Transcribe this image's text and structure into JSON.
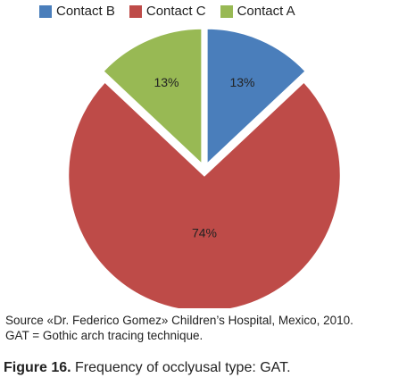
{
  "chart_data": {
    "type": "pie",
    "title": "",
    "slices": [
      {
        "label": "Contact B",
        "value": 13,
        "display": "13%",
        "color": "#4A7EBB"
      },
      {
        "label": "Contact C",
        "value": 74,
        "display": "74%",
        "color": "#BE4B48"
      },
      {
        "label": "Contact A",
        "value": 13,
        "display": "13%",
        "color": "#98B954"
      }
    ],
    "legend_placement": "top"
  },
  "legend": [
    {
      "label": "Contact B",
      "color": "#4A7EBB"
    },
    {
      "label": "Contact C",
      "color": "#BE4B48"
    },
    {
      "label": "Contact A",
      "color": "#98B954"
    }
  ],
  "captions": {
    "source": "Source «Dr. Federico Gomez» Children’s Hospital, Mexico, 2010.",
    "gat": "GAT = Gothic arch tracing technique.",
    "figure_label": "Figure 16.",
    "figure_text": " Frequency of occlyusal type: GAT."
  }
}
